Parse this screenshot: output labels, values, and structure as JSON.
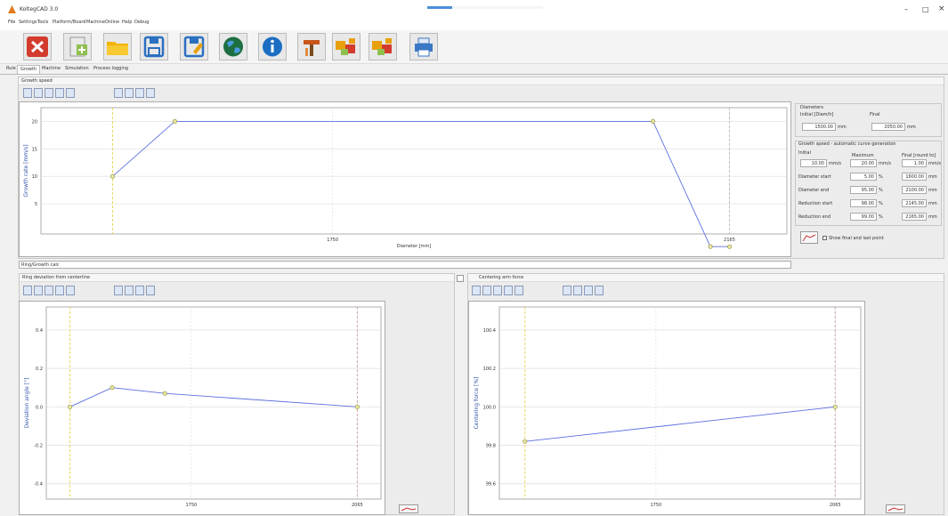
{
  "app": {
    "title": "KoltegCAD 3.0",
    "window_controls": [
      "–",
      "□",
      "×"
    ]
  },
  "menu": [
    "File",
    "Settings",
    "Tools",
    "Platform/Board",
    "Machine",
    "Online",
    "Help",
    "Debug"
  ],
  "toolbar": [
    {
      "icon": "close-x-icon",
      "color": "#d33b2c"
    },
    {
      "icon": "new-file-icon",
      "color": "#8fbf4f"
    },
    {
      "icon": "open-folder-icon",
      "color": "#f1b400"
    },
    {
      "icon": "save-icon",
      "color": "#2b6fc1"
    },
    {
      "icon": "save-as-icon",
      "color": "#2b6fc1"
    },
    {
      "icon": "globe-icon",
      "color": "#1d6f42"
    },
    {
      "icon": "info-icon",
      "color": "#1b6ec2"
    },
    {
      "icon": "tool-icon",
      "color": "#c8561b"
    },
    {
      "icon": "puzzle-icon",
      "color": "#e7a10d"
    },
    {
      "icon": "puzzle-alt-icon",
      "color": "#e7a10d"
    },
    {
      "icon": "printer-icon",
      "color": "#3a77c4"
    }
  ],
  "tabs": [
    {
      "label": "Rule",
      "active": false
    },
    {
      "label": "Growth",
      "active": true
    },
    {
      "label": "Machine",
      "active": false
    },
    {
      "label": "Simulation",
      "active": false
    },
    {
      "label": "Process logging",
      "active": false
    }
  ],
  "growth": {
    "section_title": "Growth speed",
    "xlabel": "Diameter [mm]",
    "ylabel": "Growth rate [mm/s]",
    "chart_data": {
      "type": "line",
      "x_ticks": [
        {
          "x": 1750,
          "label": "1750"
        },
        {
          "x": 2165,
          "label": "2165"
        }
      ],
      "y_ticks": [
        {
          "y": 20,
          "label": "20"
        },
        {
          "y": 15,
          "label": "15"
        },
        {
          "y": 10,
          "label": "10"
        },
        {
          "y": 5,
          "label": "5"
        }
      ],
      "xlim": [
        1445,
        2225
      ],
      "ylim": [
        -0.5,
        22.5
      ],
      "series": [
        {
          "x": [
            1520,
            1585,
            2085,
            2145,
            2165
          ],
          "y": [
            10,
            20,
            20,
            -2.8,
            -2.8
          ]
        }
      ],
      "vlines": [
        {
          "x": 1520,
          "color": "#e8d24a"
        },
        {
          "x": 2165,
          "color": "#bbbbbb"
        }
      ]
    }
  },
  "parameters": {
    "diameter_group": "Diameters",
    "initial_label": "Initial [Diam/h]",
    "final_label": "Final",
    "initial_value": "1500.00",
    "final_value": "2050.00",
    "unit_mm": "mm",
    "speed_group": "Growth speed - automatic curve generation",
    "col_initial": "Initial",
    "col_max": "Maximum",
    "col_final": "Final [round to]",
    "init_speed": "10.00",
    "max_speed": "20.00",
    "final_speed": "1.00",
    "unit_speed": "mm/s",
    "rows": [
      {
        "label": "Diameter start",
        "pct": "5.00",
        "mm": "1600.00"
      },
      {
        "label": "Diameter end",
        "pct": "95.00",
        "mm": "2100.00"
      },
      {
        "label": "Reduction start",
        "pct": "98.00",
        "mm": "2145.00"
      },
      {
        "label": "Reduction end",
        "pct": "99.00",
        "mm": "2165.00"
      }
    ],
    "pct_unit": "%",
    "mm_unit": "mm",
    "checkbox_label": "Show final and last point"
  },
  "status_field": "Ring/Growth calc",
  "angle": {
    "section_title": "Ring deviation from centerline",
    "ylabel": "Deviation angle [°]",
    "chart_data": {
      "type": "line",
      "x_ticks": [
        {
          "x": 1750,
          "label": "1750"
        },
        {
          "x": 2065,
          "label": "2065"
        }
      ],
      "y_ticks": [
        {
          "y": 0.4,
          "label": "0.4"
        },
        {
          "y": 0.2,
          "label": "0.2"
        },
        {
          "y": 0.0,
          "label": "0.0"
        },
        {
          "y": -0.2,
          "label": "-0.2"
        },
        {
          "y": -0.4,
          "label": "-0.4"
        }
      ],
      "xlim": [
        1475,
        2110
      ],
      "ylim": [
        -0.48,
        0.52
      ],
      "series": [
        {
          "x": [
            1520,
            1600,
            1700,
            2065
          ],
          "y": [
            0.0,
            0.1,
            0.07,
            0.0
          ]
        }
      ],
      "vlines": [
        {
          "x": 1520,
          "color": "#e8d24a"
        },
        {
          "x": 2065,
          "color": "#c9a0a0"
        }
      ]
    }
  },
  "force": {
    "section_title": "Centering arm force",
    "ylabel": "Centering force [%]",
    "chart_data": {
      "type": "line",
      "x_ticks": [
        {
          "x": 1750,
          "label": "1750"
        },
        {
          "x": 2065,
          "label": "2065"
        }
      ],
      "y_ticks": [
        {
          "y": 100.4,
          "label": "100.4"
        },
        {
          "y": 100.2,
          "label": "100.2"
        },
        {
          "y": 100.0,
          "label": "100.0"
        },
        {
          "y": 99.8,
          "label": "99.8"
        },
        {
          "y": 99.6,
          "label": "99.6"
        }
      ],
      "xlim": [
        1475,
        2110
      ],
      "ylim": [
        99.52,
        100.52
      ],
      "series": [
        {
          "x": [
            1520,
            2065
          ],
          "y": [
            99.82,
            100.0
          ]
        }
      ],
      "vlines": [
        {
          "x": 1520,
          "color": "#e8d24a"
        },
        {
          "x": 2065,
          "color": "#c9a0a0"
        }
      ]
    }
  }
}
